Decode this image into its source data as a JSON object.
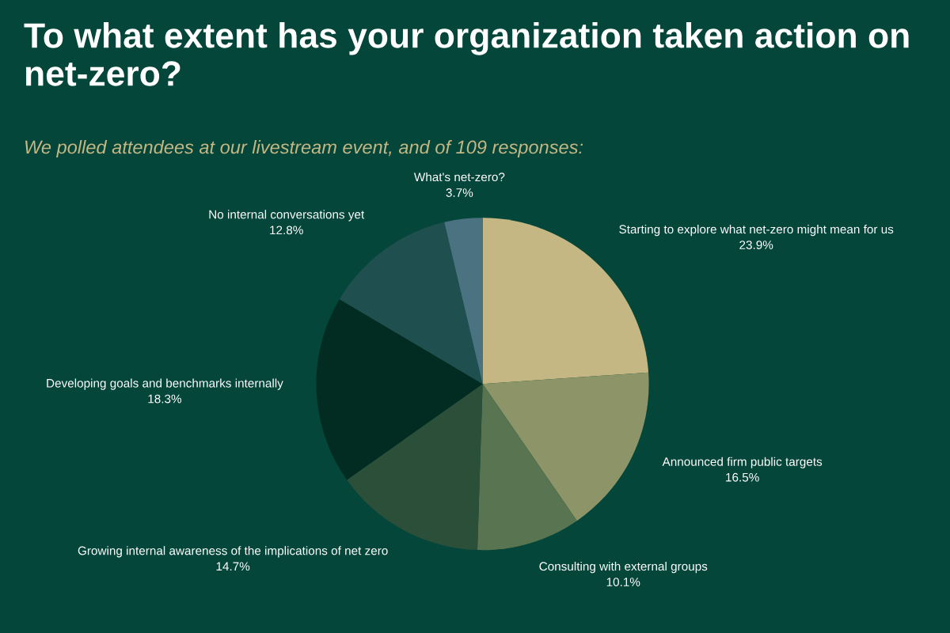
{
  "chart_data": {
    "type": "pie",
    "title": "To what extent has your organization taken action on net-zero?",
    "subtitle": "We polled attendees at our livestream event, and of 109 responses:",
    "categories": [
      "Starting to explore what net-zero might mean for us",
      "Announced firm public targets",
      "Consulting with external groups",
      "Growing internal awareness of the implications of net zero",
      "Developing goals and benchmarks internally",
      "No internal conversations yet",
      "What's net-zero?"
    ],
    "values": [
      23.9,
      16.5,
      10.1,
      14.7,
      18.3,
      12.8,
      3.7
    ],
    "value_labels": [
      "23.9%",
      "16.5%",
      "10.1%",
      "14.7%",
      "18.3%",
      "12.8%",
      "3.7%"
    ],
    "colors": [
      "#c5b783",
      "#8c9468",
      "#587450",
      "#2c4f3a",
      "#022c22",
      "#1f4f4f",
      "#4a7280"
    ],
    "legend": false
  }
}
